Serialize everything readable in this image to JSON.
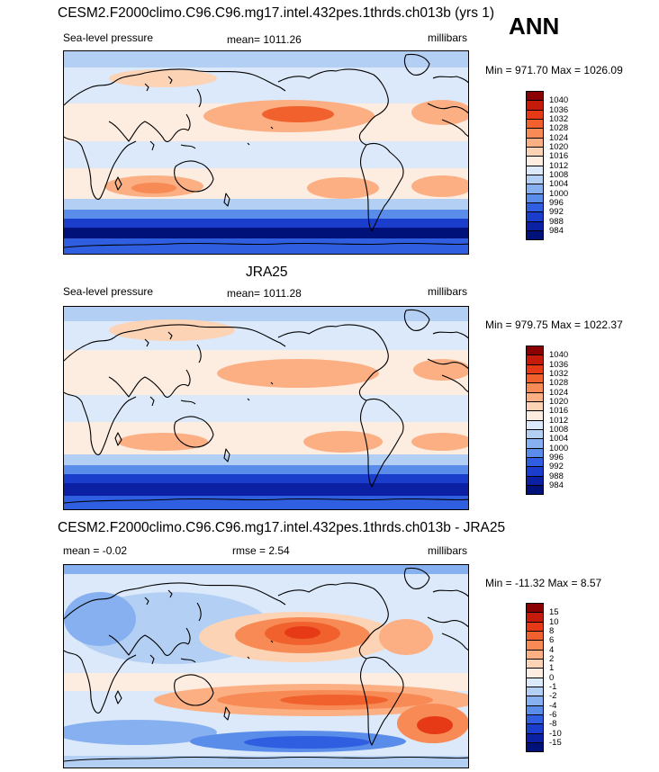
{
  "annotation": "ANN",
  "panels": [
    {
      "title": "CESM2.F2000climo.C96.C96.mg17.intel.432pes.1thrds.ch013b (yrs 1)",
      "left_label": "Sea-level pressure",
      "center_label": "mean= 1011.26",
      "right_label": "millibars",
      "minmax": "Min = 971.70 Max = 1026.09",
      "colorbar_labels": [
        "1040",
        "1036",
        "1032",
        "1028",
        "1024",
        "1020",
        "1016",
        "1012",
        "1008",
        "1004",
        "1000",
        "996",
        "992",
        "988",
        "984"
      ],
      "colorbar_colors": [
        "#8b0000",
        "#c41b0b",
        "#e63a16",
        "#f0612e",
        "#f78a55",
        "#fbaf83",
        "#fdd3b5",
        "#fdece0",
        "#dce9fa",
        "#b4cff4",
        "#86b0ef",
        "#5a8cea",
        "#2f5fe0",
        "#1a3dcb",
        "#0c20a3",
        "#00127a"
      ]
    },
    {
      "title": "JRA25",
      "left_label": "Sea-level pressure",
      "center_label": "mean= 1011.28",
      "right_label": "millibars",
      "minmax": "Min = 979.75 Max = 1022.37",
      "colorbar_labels": [
        "1040",
        "1036",
        "1032",
        "1028",
        "1024",
        "1020",
        "1016",
        "1012",
        "1008",
        "1004",
        "1000",
        "996",
        "992",
        "988",
        "984"
      ],
      "colorbar_colors": [
        "#8b0000",
        "#c41b0b",
        "#e63a16",
        "#f0612e",
        "#f78a55",
        "#fbaf83",
        "#fdd3b5",
        "#fdece0",
        "#dce9fa",
        "#b4cff4",
        "#86b0ef",
        "#5a8cea",
        "#2f5fe0",
        "#1a3dcb",
        "#0c20a3",
        "#00127a"
      ]
    },
    {
      "title": "CESM2.F2000climo.C96.C96.mg17.intel.432pes.1thrds.ch013b - JRA25",
      "left_label": "mean =  -0.02",
      "center_label": "rmse =   2.54",
      "right_label": "millibars",
      "minmax": "Min = -11.32 Max =   8.57",
      "colorbar_labels": [
        "15",
        "10",
        "8",
        "6",
        "4",
        "2",
        "1",
        "0",
        "-1",
        "-2",
        "-4",
        "-6",
        "-8",
        "-10",
        "-15"
      ],
      "colorbar_colors": [
        "#8b0000",
        "#c41b0b",
        "#e63a16",
        "#f0612e",
        "#f78a55",
        "#fbaf83",
        "#fdd3b5",
        "#fdece0",
        "#dce9fa",
        "#b4cff4",
        "#86b0ef",
        "#5a8cea",
        "#2f5fe0",
        "#1a3dcb",
        "#0c20a3",
        "#00127a"
      ]
    }
  ]
}
